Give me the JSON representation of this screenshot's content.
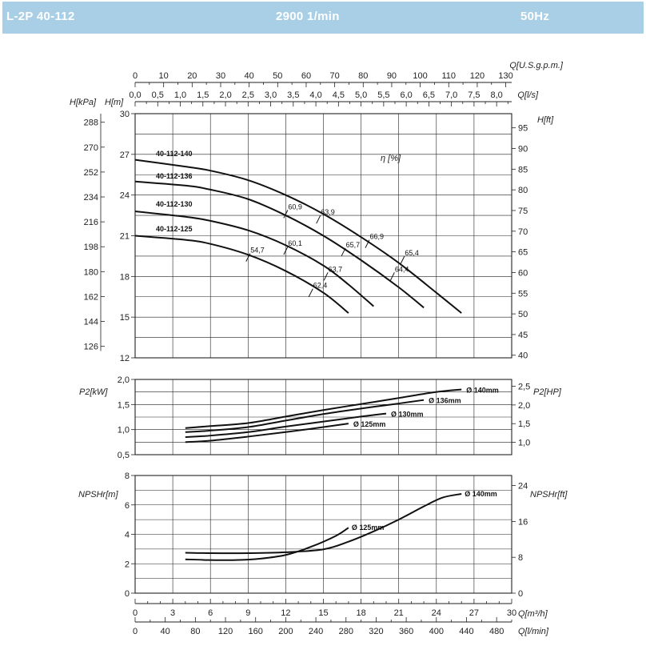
{
  "header": {
    "model": "L-2P 40-112",
    "speed": "2900 1/min",
    "frequency": "50Hz",
    "background_color": "#a9cfe6"
  },
  "chart_data": [
    {
      "type": "line",
      "panel": "head",
      "top_axes": [
        {
          "label": "Q[U.S.g.p.m.]",
          "ticks": [
            "0",
            "10",
            "20",
            "30",
            "40",
            "50",
            "60",
            "70",
            "80",
            "90",
            "100",
            "110",
            "120",
            "130"
          ]
        },
        {
          "label": "Q[l/s]",
          "ticks": [
            "0,0",
            "0,5",
            "1,0",
            "1,5",
            "2,0",
            "2,5",
            "3,0",
            "3,5",
            "4,0",
            "4,5",
            "5,0",
            "5,5",
            "6,0",
            "6,5",
            "7,0",
            "7,5",
            "8,0"
          ]
        }
      ],
      "ylabel_left_kpa": "H[kPa]",
      "ylabel_left_m": "H[m]",
      "ylabel_right": "H[ft]",
      "ylim": [
        12,
        30
      ],
      "y_ticks": [
        "12",
        "15",
        "18",
        "21",
        "24",
        "27",
        "30"
      ],
      "kpa_ticks": [
        "126",
        "144",
        "162",
        "180",
        "198",
        "216",
        "234",
        "252",
        "270",
        "288"
      ],
      "ft_ticks": [
        "40",
        "45",
        "50",
        "55",
        "60",
        "65",
        "70",
        "75",
        "80",
        "85",
        "90",
        "95"
      ],
      "efficiency_label": "η [%]",
      "series": [
        {
          "name": "40-112-140",
          "x": [
            0,
            4,
            6,
            9,
            12,
            15,
            18,
            21,
            24,
            26
          ],
          "y": [
            26.6,
            26.1,
            25.8,
            25.1,
            24.0,
            22.6,
            20.9,
            19.0,
            16.8,
            15.3
          ]
        },
        {
          "name": "40-112-136",
          "x": [
            0,
            4,
            6,
            9,
            12,
            15,
            18,
            21,
            23
          ],
          "y": [
            25.0,
            24.7,
            24.4,
            23.7,
            22.5,
            21.0,
            19.2,
            17.2,
            15.7
          ]
        },
        {
          "name": "40-112-130",
          "x": [
            0,
            4,
            6,
            9,
            12,
            15,
            17,
            19
          ],
          "y": [
            22.8,
            22.4,
            22.1,
            21.4,
            20.3,
            18.8,
            17.4,
            15.8
          ]
        },
        {
          "name": "40-112-125",
          "x": [
            0,
            4,
            6,
            9,
            12,
            15,
            17
          ],
          "y": [
            21.0,
            20.7,
            20.4,
            19.6,
            18.4,
            16.8,
            15.3
          ]
        }
      ],
      "efficiency_marks": [
        {
          "label": "63,9",
          "x": 14.6,
          "y": 22.2
        },
        {
          "label": "60,9",
          "x": 12.0,
          "y": 22.6
        },
        {
          "label": "66,9",
          "x": 18.5,
          "y": 20.4
        },
        {
          "label": "65,7",
          "x": 16.6,
          "y": 19.8
        },
        {
          "label": "65,4",
          "x": 21.3,
          "y": 19.2
        },
        {
          "label": "64,4",
          "x": 20.5,
          "y": 18.0
        },
        {
          "label": "60,1",
          "x": 12.0,
          "y": 19.9
        },
        {
          "label": "63,7",
          "x": 15.2,
          "y": 18.0
        },
        {
          "label": "54,7",
          "x": 9.0,
          "y": 19.4
        },
        {
          "label": "62,4",
          "x": 14.0,
          "y": 16.8
        }
      ]
    },
    {
      "type": "line",
      "panel": "power",
      "ylabel_left": "P2[kW]",
      "ylabel_right": "P2[HP]",
      "ylim": [
        0.5,
        2.0
      ],
      "y_ticks": [
        "0,5",
        "1,0",
        "1,5",
        "2,0"
      ],
      "hp_ticks": [
        "1,0",
        "1,5",
        "2,0",
        "2,5"
      ],
      "series": [
        {
          "name": "Ø 140mm",
          "x": [
            4,
            6,
            9,
            12,
            15,
            18,
            21,
            24,
            26
          ],
          "y": [
            1.03,
            1.07,
            1.13,
            1.26,
            1.39,
            1.51,
            1.63,
            1.75,
            1.8
          ]
        },
        {
          "name": "Ø 136mm",
          "x": [
            4,
            6,
            9,
            12,
            15,
            18,
            21,
            23
          ],
          "y": [
            0.95,
            0.98,
            1.05,
            1.18,
            1.31,
            1.42,
            1.52,
            1.59
          ]
        },
        {
          "name": "Ø 130mm",
          "x": [
            4,
            6,
            9,
            12,
            15,
            18,
            20
          ],
          "y": [
            0.85,
            0.88,
            0.95,
            1.06,
            1.16,
            1.26,
            1.32
          ]
        },
        {
          "name": "Ø 125mm",
          "x": [
            4,
            6,
            9,
            12,
            15,
            17
          ],
          "y": [
            0.75,
            0.78,
            0.86,
            0.95,
            1.05,
            1.12
          ]
        }
      ]
    },
    {
      "type": "line",
      "panel": "npsh",
      "ylabel_left": "NPSHr[m]",
      "ylabel_right": "NPSHr[ft]",
      "ylim": [
        0,
        8
      ],
      "y_ticks": [
        "0",
        "2",
        "4",
        "6",
        "8"
      ],
      "ft_ticks": [
        "0",
        "8",
        "16",
        "24"
      ],
      "bottom_axes": [
        {
          "label": "Q[m³/h]",
          "ticks": [
            "0",
            "3",
            "6",
            "9",
            "12",
            "15",
            "18",
            "21",
            "24",
            "27",
            "30"
          ]
        },
        {
          "label": "Q[l/min]",
          "ticks": [
            "0",
            "40",
            "80",
            "120",
            "160",
            "200",
            "240",
            "280",
            "320",
            "360",
            "400",
            "440",
            "480"
          ]
        }
      ],
      "series": [
        {
          "name": "Ø 140mm",
          "x": [
            4,
            6,
            9,
            12,
            15,
            17,
            19,
            21,
            23,
            24.5,
            26
          ],
          "y": [
            2.75,
            2.72,
            2.72,
            2.78,
            2.98,
            3.5,
            4.2,
            5.0,
            5.9,
            6.5,
            6.75
          ]
        },
        {
          "name": "Ø 125mm",
          "x": [
            4,
            6,
            8,
            10,
            12,
            14,
            16,
            17
          ],
          "y": [
            2.3,
            2.25,
            2.25,
            2.35,
            2.6,
            3.15,
            3.9,
            4.45
          ]
        }
      ]
    }
  ]
}
